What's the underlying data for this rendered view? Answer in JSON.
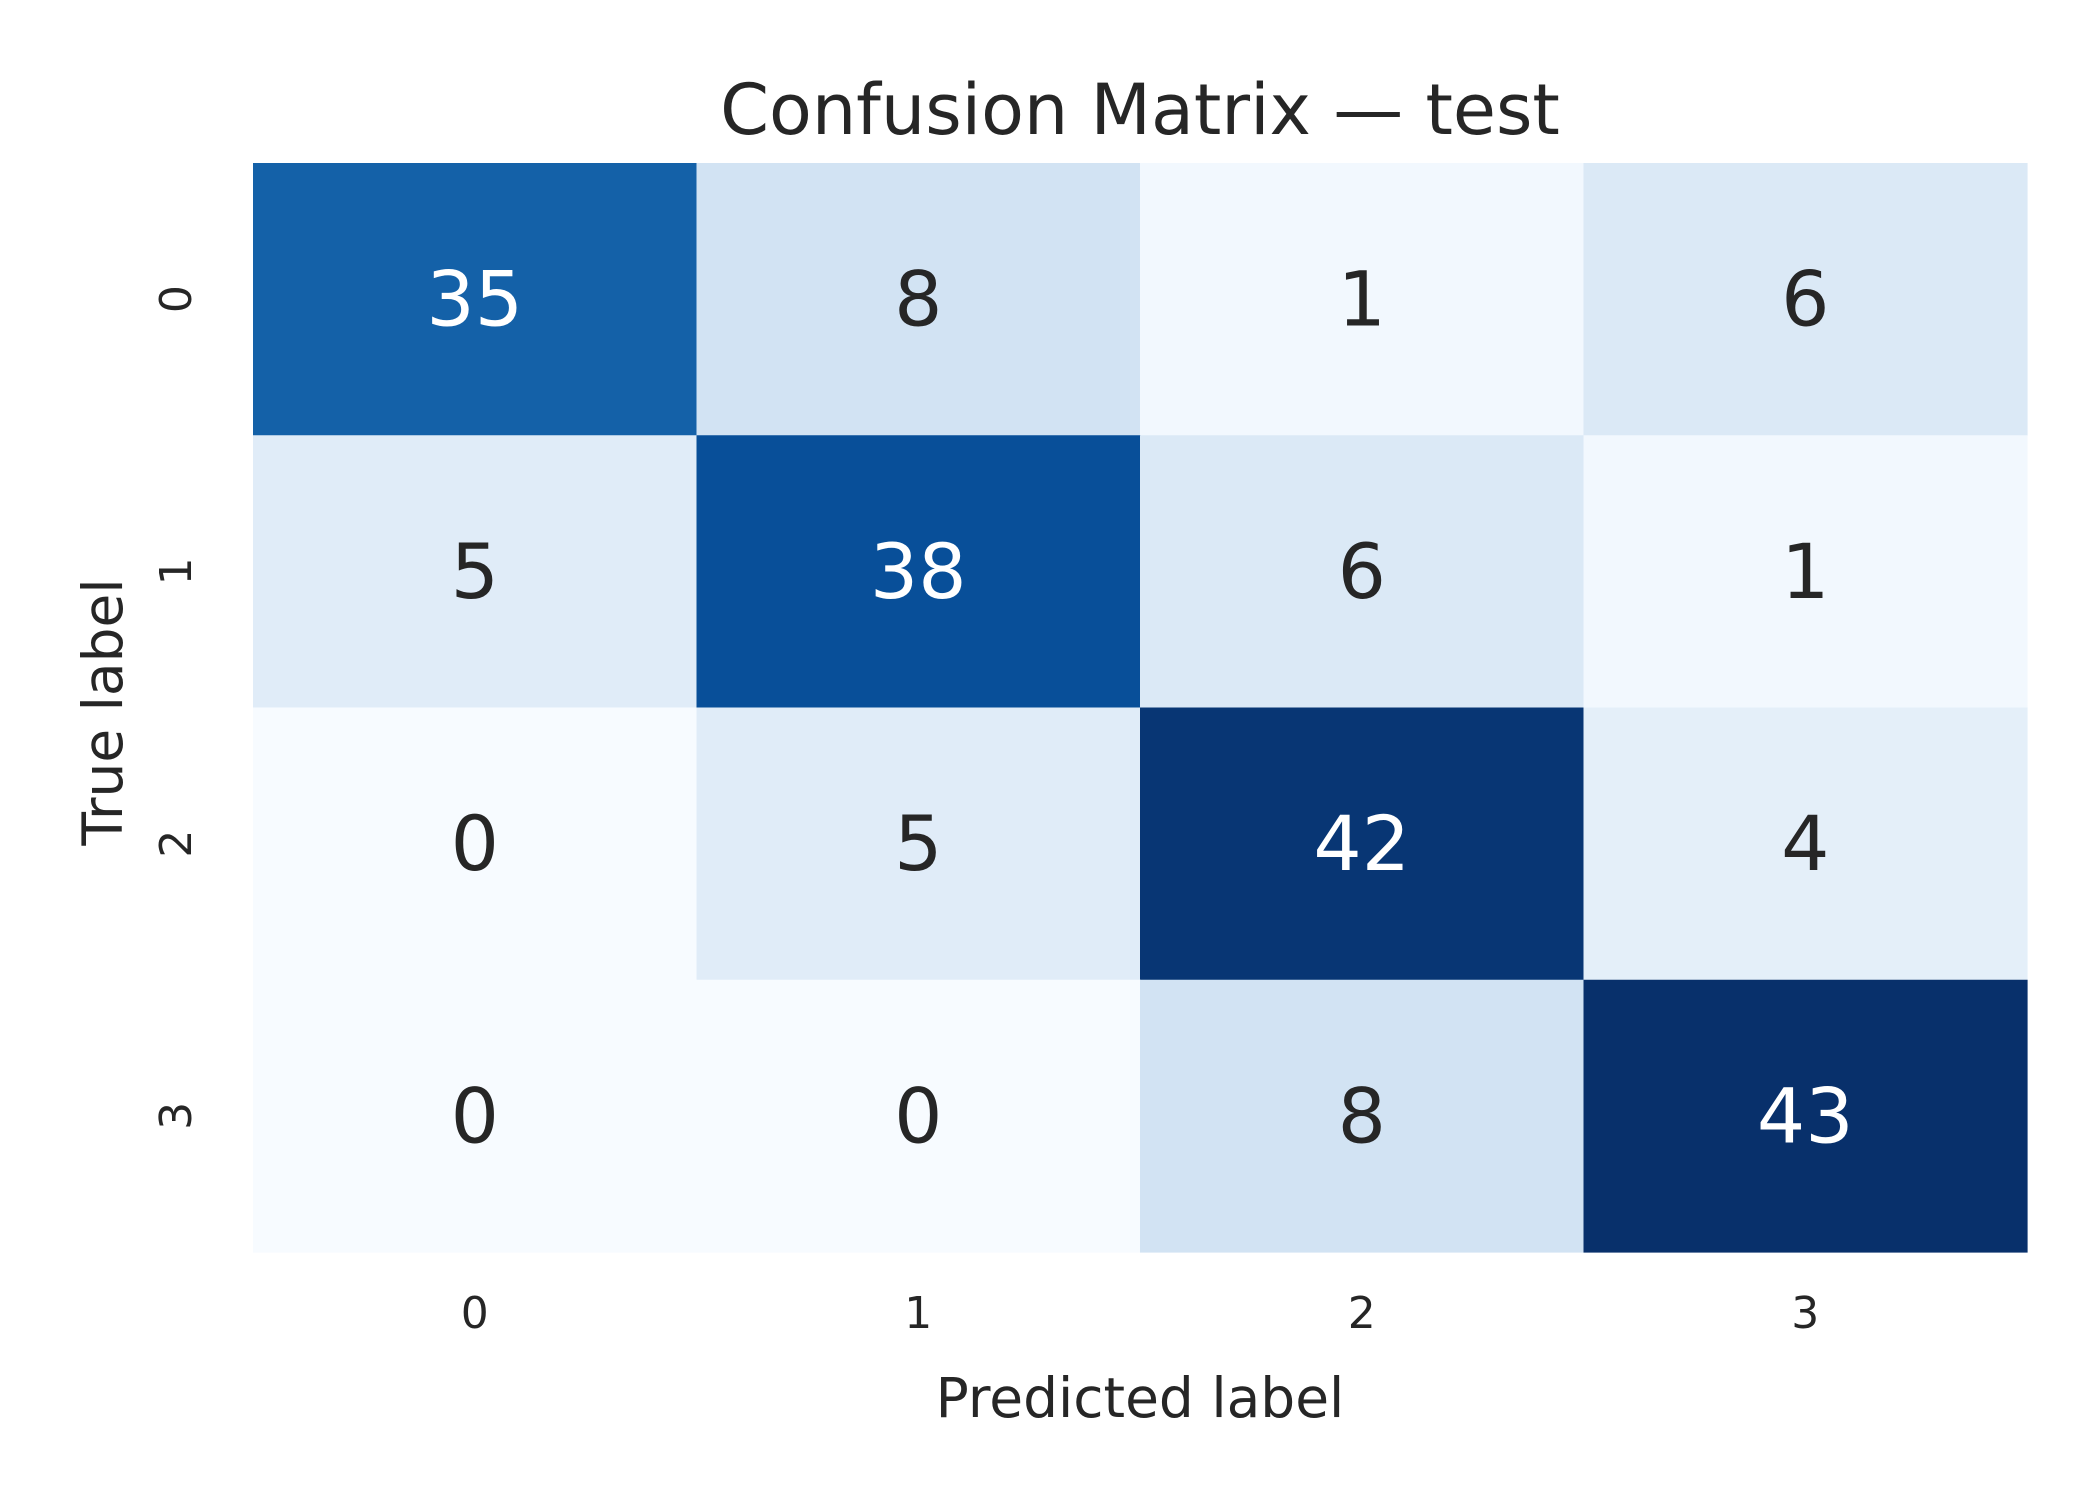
{
  "chart_data": {
    "type": "heatmap",
    "title": "Confusion Matrix — test",
    "xlabel": "Predicted label",
    "ylabel": "True label",
    "x_categories": [
      "0",
      "1",
      "2",
      "3"
    ],
    "y_categories": [
      "0",
      "1",
      "2",
      "3"
    ],
    "values": [
      [
        35,
        8,
        1,
        6
      ],
      [
        5,
        38,
        6,
        1
      ],
      [
        0,
        5,
        42,
        4
      ],
      [
        0,
        0,
        8,
        43
      ]
    ],
    "colormap": "Blues",
    "colorbar": false,
    "grid": false,
    "annotation_dark_color": "#262626",
    "annotation_light_color": "#ffffff"
  }
}
